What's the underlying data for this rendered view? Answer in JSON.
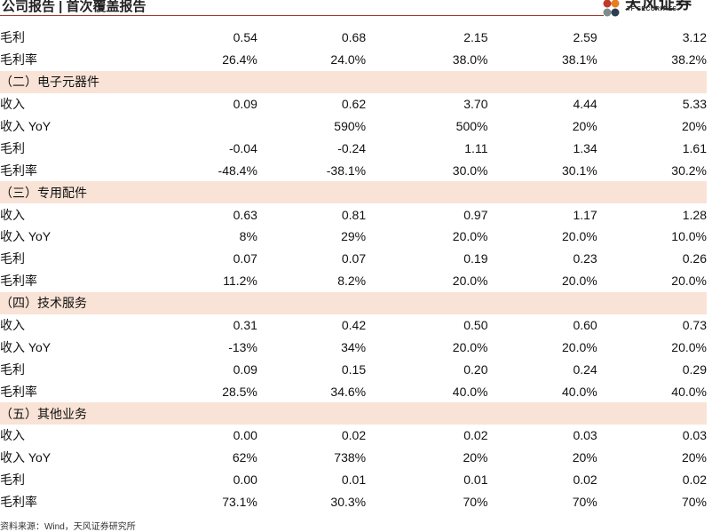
{
  "header": {
    "title": "公司报告 | 首次覆盖报告",
    "logo_cn": "天风证券",
    "logo_en": "TF SECURITIES"
  },
  "table": {
    "rows": [
      {
        "type": "data",
        "label": "毛利",
        "values": [
          "0.54",
          "0.68",
          "2.15",
          "2.59",
          "3.12"
        ]
      },
      {
        "type": "data",
        "label": "毛利率",
        "values": [
          "26.4%",
          "24.0%",
          "38.0%",
          "38.1%",
          "38.2%"
        ]
      },
      {
        "type": "section",
        "label": "（二）电子元器件"
      },
      {
        "type": "data",
        "label": "收入",
        "values": [
          "0.09",
          "0.62",
          "3.70",
          "4.44",
          "5.33"
        ]
      },
      {
        "type": "data",
        "label": "收入 YoY",
        "values": [
          "",
          "590%",
          "500%",
          "20%",
          "20%"
        ]
      },
      {
        "type": "data",
        "label": "毛利",
        "values": [
          "-0.04",
          "-0.24",
          "1.11",
          "1.34",
          "1.61"
        ]
      },
      {
        "type": "data",
        "label": "毛利率",
        "values": [
          "-48.4%",
          "-38.1%",
          "30.0%",
          "30.1%",
          "30.2%"
        ]
      },
      {
        "type": "section",
        "label": "（三）专用配件"
      },
      {
        "type": "data",
        "label": "收入",
        "values": [
          "0.63",
          "0.81",
          "0.97",
          "1.17",
          "1.28"
        ]
      },
      {
        "type": "data",
        "label": "收入 YoY",
        "values": [
          "8%",
          "29%",
          "20.0%",
          "20.0%",
          "10.0%"
        ]
      },
      {
        "type": "data",
        "label": "毛利",
        "values": [
          "0.07",
          "0.07",
          "0.19",
          "0.23",
          "0.26"
        ]
      },
      {
        "type": "data",
        "label": "毛利率",
        "values": [
          "11.2%",
          "8.2%",
          "20.0%",
          "20.0%",
          "20.0%"
        ]
      },
      {
        "type": "section",
        "label": "（四）技术服务"
      },
      {
        "type": "data",
        "label": "收入",
        "values": [
          "0.31",
          "0.42",
          "0.50",
          "0.60",
          "0.73"
        ]
      },
      {
        "type": "data",
        "label": "收入 YoY",
        "values": [
          "-13%",
          "34%",
          "20.0%",
          "20.0%",
          "20.0%"
        ]
      },
      {
        "type": "data",
        "label": "毛利",
        "values": [
          "0.09",
          "0.15",
          "0.20",
          "0.24",
          "0.29"
        ]
      },
      {
        "type": "data",
        "label": "毛利率",
        "values": [
          "28.5%",
          "34.6%",
          "40.0%",
          "40.0%",
          "40.0%"
        ]
      },
      {
        "type": "section",
        "label": "（五）其他业务"
      },
      {
        "type": "data",
        "label": "收入",
        "values": [
          "0.00",
          "0.02",
          "0.02",
          "0.03",
          "0.03"
        ]
      },
      {
        "type": "data",
        "label": "收入 YoY",
        "values": [
          "62%",
          "738%",
          "20%",
          "20%",
          "20%"
        ]
      },
      {
        "type": "data",
        "label": "毛利",
        "values": [
          "0.00",
          "0.01",
          "0.01",
          "0.02",
          "0.02"
        ]
      },
      {
        "type": "data",
        "label": "毛利率",
        "values": [
          "73.1%",
          "30.3%",
          "70%",
          "70%",
          "70%"
        ]
      }
    ]
  },
  "source_note": "资料来源：Wind，天风证券研究所",
  "colors": {
    "section_bg": "#f9e3d6",
    "rule": "#9e3a2f"
  }
}
